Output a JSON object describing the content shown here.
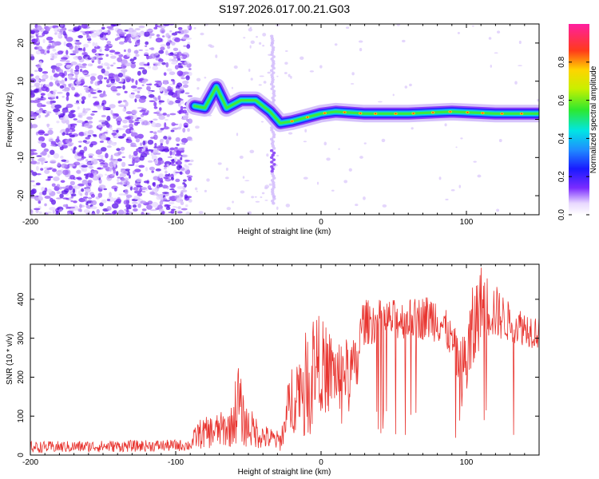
{
  "title": "S197.2026.017.00.21.G03",
  "chart_data": [
    {
      "type": "heatmap",
      "xlabel": "Height of straight line (km)",
      "ylabel": "Frequency (Hz)",
      "xlim": [
        -200,
        150
      ],
      "ylim": [
        -25,
        25
      ],
      "xticks": [
        -200,
        -100,
        0,
        100
      ],
      "yticks": [
        -20,
        -10,
        0,
        10,
        20
      ],
      "colorbar": {
        "label": "Normalized spectral amplitude",
        "range": [
          0,
          1
        ],
        "ticks": [
          "0.0",
          "0.2",
          "0.4",
          "0.6",
          "0.8"
        ]
      },
      "noise_region_x": [
        -200,
        -90
      ],
      "signal_ridge": [
        {
          "x": -87,
          "y": 3.5
        },
        {
          "x": -80,
          "y": 3
        },
        {
          "x": -72,
          "y": 8.5
        },
        {
          "x": -65,
          "y": 3
        },
        {
          "x": -55,
          "y": 5
        },
        {
          "x": -45,
          "y": 5
        },
        {
          "x": -35,
          "y": 2
        },
        {
          "x": -28,
          "y": -1
        },
        {
          "x": -20,
          "y": -0.5
        },
        {
          "x": -10,
          "y": 0.5
        },
        {
          "x": 0,
          "y": 1.5
        },
        {
          "x": 10,
          "y": 2
        },
        {
          "x": 30,
          "y": 1.5
        },
        {
          "x": 60,
          "y": 1.5
        },
        {
          "x": 90,
          "y": 2
        },
        {
          "x": 120,
          "y": 1.5
        },
        {
          "x": 150,
          "y": 1.5
        }
      ],
      "side_streak": {
        "x": -33,
        "y_from": -22,
        "y_to": 22
      }
    },
    {
      "type": "line",
      "color": "#e8342f",
      "xlabel": "Height of straight line (km)",
      "ylabel": "SNR (10 * v/v)",
      "xlim": [
        -200,
        150
      ],
      "ylim": [
        0,
        490
      ],
      "xticks": [
        -200,
        -100,
        0,
        100
      ],
      "yticks": [
        0,
        100,
        200,
        300,
        400
      ],
      "envelope": [
        {
          "x": -200,
          "lo": 5,
          "hi": 35
        },
        {
          "x": -90,
          "lo": 10,
          "hi": 40
        },
        {
          "x": -85,
          "lo": 15,
          "hi": 90
        },
        {
          "x": -62,
          "lo": 20,
          "hi": 120
        },
        {
          "x": -57,
          "lo": 30,
          "hi": 250
        },
        {
          "x": -53,
          "lo": 20,
          "hi": 140
        },
        {
          "x": -40,
          "lo": 15,
          "hi": 80
        },
        {
          "x": -28,
          "lo": 10,
          "hi": 60
        },
        {
          "x": -20,
          "lo": 50,
          "hi": 250
        },
        {
          "x": -12,
          "lo": 80,
          "hi": 300
        },
        {
          "x": -5,
          "lo": 110,
          "hi": 380
        },
        {
          "x": 10,
          "lo": 120,
          "hi": 300
        },
        {
          "x": 25,
          "lo": 150,
          "hi": 300
        },
        {
          "x": 28,
          "lo": 280,
          "hi": 400
        },
        {
          "x": 60,
          "lo": 300,
          "hi": 400
        },
        {
          "x": 80,
          "lo": 290,
          "hi": 420
        },
        {
          "x": 90,
          "lo": 250,
          "hi": 340
        },
        {
          "x": 97,
          "lo": 120,
          "hi": 300
        },
        {
          "x": 103,
          "lo": 150,
          "hi": 420
        },
        {
          "x": 110,
          "lo": 300,
          "hi": 490
        },
        {
          "x": 130,
          "lo": 290,
          "hi": 390
        },
        {
          "x": 150,
          "lo": 270,
          "hi": 360
        }
      ]
    }
  ]
}
